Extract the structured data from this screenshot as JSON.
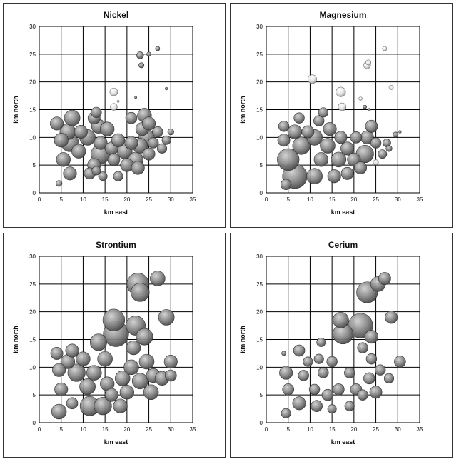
{
  "chart_data": [
    {
      "type": "scatter",
      "title": "Nickel",
      "xlabel": "km east",
      "ylabel": "km north",
      "xlim": [
        0,
        35
      ],
      "ylim": [
        0,
        30
      ],
      "xticks": [
        "0",
        "5",
        "10",
        "15",
        "20",
        "25",
        "30",
        "35"
      ],
      "yticks": [
        "0",
        "5",
        "10",
        "15",
        "20",
        "25",
        "30"
      ],
      "grid": true,
      "points": [
        {
          "x": 4,
          "y": 12.5,
          "r": 1.5
        },
        {
          "x": 5,
          "y": 9.5,
          "r": 1.6
        },
        {
          "x": 5.5,
          "y": 6,
          "r": 1.6
        },
        {
          "x": 6.5,
          "y": 11,
          "r": 1.8
        },
        {
          "x": 7.5,
          "y": 13.5,
          "r": 1.8
        },
        {
          "x": 7,
          "y": 9,
          "r": 2
        },
        {
          "x": 7,
          "y": 3.5,
          "r": 1.5
        },
        {
          "x": 4.5,
          "y": 1.7,
          "r": 0.7
        },
        {
          "x": 9.5,
          "y": 11,
          "r": 1.5
        },
        {
          "x": 9,
          "y": 7.5,
          "r": 1.6
        },
        {
          "x": 11,
          "y": 10,
          "r": 1.8
        },
        {
          "x": 11.5,
          "y": 3.5,
          "r": 1.3
        },
        {
          "x": 12.5,
          "y": 13.5,
          "r": 1.4
        },
        {
          "x": 13.5,
          "y": 12,
          "r": 1.6
        },
        {
          "x": 13,
          "y": 14.5,
          "r": 1.2
        },
        {
          "x": 14,
          "y": 9,
          "r": 1.5
        },
        {
          "x": 14,
          "y": 7,
          "r": 2.2
        },
        {
          "x": 12.5,
          "y": 5,
          "r": 1.5
        },
        {
          "x": 14.5,
          "y": 3,
          "r": 1
        },
        {
          "x": 13,
          "y": 4,
          "r": 1
        },
        {
          "x": 15.5,
          "y": 11.5,
          "r": 1.6
        },
        {
          "x": 16.5,
          "y": 8,
          "r": 1.5
        },
        {
          "x": 17,
          "y": 6,
          "r": 1.4
        },
        {
          "x": 18,
          "y": 9.5,
          "r": 1.5
        },
        {
          "x": 18,
          "y": 3,
          "r": 1.1
        },
        {
          "x": 19.5,
          "y": 7.5,
          "r": 1.7
        },
        {
          "x": 20,
          "y": 5,
          "r": 1.5
        },
        {
          "x": 21,
          "y": 9,
          "r": 1.5
        },
        {
          "x": 21,
          "y": 13.5,
          "r": 1.3
        },
        {
          "x": 22,
          "y": 6,
          "r": 1.7
        },
        {
          "x": 22.5,
          "y": 4.5,
          "r": 1.5
        },
        {
          "x": 23,
          "y": 8.5,
          "r": 1.7
        },
        {
          "x": 23.5,
          "y": 11.5,
          "r": 1.5
        },
        {
          "x": 24,
          "y": 14,
          "r": 1.6
        },
        {
          "x": 24.5,
          "y": 10,
          "r": 1.8
        },
        {
          "x": 25,
          "y": 12.5,
          "r": 1.5
        },
        {
          "x": 25,
          "y": 7,
          "r": 1.4
        },
        {
          "x": 26,
          "y": 9,
          "r": 1.2
        },
        {
          "x": 27,
          "y": 11,
          "r": 1.2
        },
        {
          "x": 28,
          "y": 8,
          "r": 1.1
        },
        {
          "x": 29,
          "y": 9.5,
          "r": 1
        },
        {
          "x": 30,
          "y": 11,
          "r": 0.7
        },
        {
          "x": 23,
          "y": 24.8,
          "r": 0.8
        },
        {
          "x": 23.3,
          "y": 23,
          "r": 0.6
        },
        {
          "x": 25,
          "y": 25,
          "r": 0.5
        },
        {
          "x": 27,
          "y": 26,
          "r": 0.5
        },
        {
          "x": 29,
          "y": 18.8,
          "r": 0.3
        },
        {
          "x": 22,
          "y": 17.2,
          "r": 0.15
        },
        {
          "x": 17,
          "y": 18.2,
          "r": 0.9,
          "light": true
        },
        {
          "x": 17,
          "y": 15.5,
          "r": 0.8,
          "light": true
        },
        {
          "x": 18,
          "y": 16.5,
          "r": 0.25,
          "light": true
        }
      ]
    },
    {
      "type": "scatter",
      "title": "Magnesium",
      "xlabel": "km east",
      "ylabel": "km north",
      "xlim": [
        0,
        35
      ],
      "ylim": [
        0,
        30
      ],
      "xticks": [
        "0",
        "5",
        "10",
        "15",
        "20",
        "25",
        "30",
        "35"
      ],
      "yticks": [
        "0",
        "5",
        "10",
        "15",
        "20",
        "25",
        "30"
      ],
      "grid": true,
      "points": [
        {
          "x": 4,
          "y": 12,
          "r": 1.2
        },
        {
          "x": 4,
          "y": 9.5,
          "r": 1.4
        },
        {
          "x": 5,
          "y": 6,
          "r": 2.5
        },
        {
          "x": 6.5,
          "y": 3,
          "r": 2.8
        },
        {
          "x": 4.5,
          "y": 1.5,
          "r": 1.2
        },
        {
          "x": 6.5,
          "y": 11,
          "r": 1.6
        },
        {
          "x": 7.5,
          "y": 13.5,
          "r": 1.2
        },
        {
          "x": 8,
          "y": 8.5,
          "r": 2
        },
        {
          "x": 9.5,
          "y": 11,
          "r": 1.4
        },
        {
          "x": 11,
          "y": 10,
          "r": 1.8
        },
        {
          "x": 12,
          "y": 13,
          "r": 1.2
        },
        {
          "x": 13,
          "y": 14.5,
          "r": 1.1
        },
        {
          "x": 11,
          "y": 3,
          "r": 1.8
        },
        {
          "x": 12.5,
          "y": 6,
          "r": 1.6
        },
        {
          "x": 14,
          "y": 8.5,
          "r": 1.7
        },
        {
          "x": 14.5,
          "y": 11.5,
          "r": 1.5
        },
        {
          "x": 15.5,
          "y": 3,
          "r": 1.5
        },
        {
          "x": 16.5,
          "y": 6,
          "r": 1.7
        },
        {
          "x": 17,
          "y": 10,
          "r": 1.4
        },
        {
          "x": 18.5,
          "y": 8,
          "r": 1.5
        },
        {
          "x": 18.5,
          "y": 3.5,
          "r": 1.4
        },
        {
          "x": 20,
          "y": 6,
          "r": 1.5
        },
        {
          "x": 20.5,
          "y": 10,
          "r": 1.3
        },
        {
          "x": 21.5,
          "y": 4.5,
          "r": 1.4
        },
        {
          "x": 22.5,
          "y": 7,
          "r": 2
        },
        {
          "x": 23,
          "y": 10,
          "r": 1.5
        },
        {
          "x": 24,
          "y": 12,
          "r": 1.4
        },
        {
          "x": 25,
          "y": 9,
          "r": 1.2
        },
        {
          "x": 26.5,
          "y": 7,
          "r": 1
        },
        {
          "x": 27.5,
          "y": 9,
          "r": 0.9
        },
        {
          "x": 28,
          "y": 8,
          "r": 0.7
        },
        {
          "x": 29.5,
          "y": 10.5,
          "r": 0.6
        },
        {
          "x": 30.5,
          "y": 11,
          "r": 0.3
        },
        {
          "x": 22.5,
          "y": 15.5,
          "r": 0.4
        },
        {
          "x": 23.5,
          "y": 15,
          "r": 0.3
        },
        {
          "x": 21.5,
          "y": 17,
          "r": 0.4,
          "light": true
        },
        {
          "x": 10.5,
          "y": 20.5,
          "r": 1,
          "light": true
        },
        {
          "x": 17,
          "y": 18.2,
          "r": 1.1,
          "light": true
        },
        {
          "x": 17.3,
          "y": 15.5,
          "r": 0.9,
          "light": true
        },
        {
          "x": 23,
          "y": 23,
          "r": 0.8,
          "light": true
        },
        {
          "x": 23.3,
          "y": 23.5,
          "r": 0.6,
          "light": true
        },
        {
          "x": 27,
          "y": 26,
          "r": 0.5,
          "light": true
        },
        {
          "x": 28.5,
          "y": 19,
          "r": 0.5,
          "light": true
        },
        {
          "x": 25,
          "y": 5.5,
          "r": 0.6,
          "light": true
        }
      ]
    },
    {
      "type": "scatter",
      "title": "Strontium",
      "xlabel": "km east",
      "ylabel": "km north",
      "xlim": [
        0,
        35
      ],
      "ylim": [
        0,
        30
      ],
      "xticks": [
        "0",
        "5",
        "10",
        "15",
        "20",
        "25",
        "30",
        "35"
      ],
      "yticks": [
        "0",
        "5",
        "10",
        "15",
        "20",
        "25",
        "30"
      ],
      "grid": true,
      "points": [
        {
          "x": 4,
          "y": 12.5,
          "r": 1.4
        },
        {
          "x": 4.5,
          "y": 9.5,
          "r": 1.5
        },
        {
          "x": 5,
          "y": 6,
          "r": 1.5
        },
        {
          "x": 4.5,
          "y": 2,
          "r": 1.7
        },
        {
          "x": 6.5,
          "y": 11,
          "r": 1.6
        },
        {
          "x": 7.5,
          "y": 13,
          "r": 1.5
        },
        {
          "x": 7.5,
          "y": 3.5,
          "r": 1.3
        },
        {
          "x": 8.5,
          "y": 9,
          "r": 2
        },
        {
          "x": 10,
          "y": 11.5,
          "r": 1.6
        },
        {
          "x": 11,
          "y": 6.5,
          "r": 1.8
        },
        {
          "x": 11.5,
          "y": 3,
          "r": 2.2
        },
        {
          "x": 12.5,
          "y": 9,
          "r": 1.7
        },
        {
          "x": 13.5,
          "y": 14.5,
          "r": 1.9
        },
        {
          "x": 14.5,
          "y": 3,
          "r": 2
        },
        {
          "x": 15,
          "y": 11.5,
          "r": 1.7
        },
        {
          "x": 15.5,
          "y": 7,
          "r": 1.6
        },
        {
          "x": 16.5,
          "y": 5,
          "r": 1.5
        },
        {
          "x": 17,
          "y": 18.5,
          "r": 2.5
        },
        {
          "x": 17.5,
          "y": 16,
          "r": 2.9
        },
        {
          "x": 18.5,
          "y": 3,
          "r": 1.6
        },
        {
          "x": 19,
          "y": 8,
          "r": 1.7
        },
        {
          "x": 20,
          "y": 5.5,
          "r": 1.6
        },
        {
          "x": 21,
          "y": 10,
          "r": 1.7
        },
        {
          "x": 21.5,
          "y": 13.5,
          "r": 1.6
        },
        {
          "x": 22,
          "y": 17.5,
          "r": 2.2
        },
        {
          "x": 22.5,
          "y": 25,
          "r": 2.5
        },
        {
          "x": 23,
          "y": 23.5,
          "r": 2.1
        },
        {
          "x": 23,
          "y": 7.5,
          "r": 1.8
        },
        {
          "x": 24,
          "y": 15.5,
          "r": 1.9
        },
        {
          "x": 24.5,
          "y": 11,
          "r": 1.7
        },
        {
          "x": 25.5,
          "y": 5.5,
          "r": 1.7
        },
        {
          "x": 26,
          "y": 8.5,
          "r": 1.6
        },
        {
          "x": 27,
          "y": 26,
          "r": 1.7
        },
        {
          "x": 28,
          "y": 8,
          "r": 1.6
        },
        {
          "x": 29,
          "y": 19,
          "r": 1.8
        },
        {
          "x": 30,
          "y": 11,
          "r": 1.5
        },
        {
          "x": 30,
          "y": 8.5,
          "r": 1.3
        }
      ]
    },
    {
      "type": "scatter",
      "title": "Cerium",
      "xlabel": "km east",
      "ylabel": "km north",
      "xlim": [
        0,
        35
      ],
      "ylim": [
        0,
        30
      ],
      "xticks": [
        "0",
        "5",
        "10",
        "15",
        "20",
        "25",
        "30",
        "35"
      ],
      "yticks": [
        "0",
        "5",
        "10",
        "15",
        "20",
        "25",
        "30"
      ],
      "grid": true,
      "points": [
        {
          "x": 4,
          "y": 12.5,
          "r": 0.5
        },
        {
          "x": 4.5,
          "y": 9,
          "r": 1.5
        },
        {
          "x": 5,
          "y": 6,
          "r": 1.3
        },
        {
          "x": 4.5,
          "y": 1.7,
          "r": 1.1
        },
        {
          "x": 7.5,
          "y": 13,
          "r": 1.3
        },
        {
          "x": 8.5,
          "y": 8.5,
          "r": 1.2
        },
        {
          "x": 7.5,
          "y": 3.5,
          "r": 1.5
        },
        {
          "x": 9.5,
          "y": 11,
          "r": 1.1
        },
        {
          "x": 11,
          "y": 6,
          "r": 1.2
        },
        {
          "x": 11.5,
          "y": 3,
          "r": 1.3
        },
        {
          "x": 12,
          "y": 11.5,
          "r": 1.1
        },
        {
          "x": 12.5,
          "y": 14.5,
          "r": 1
        },
        {
          "x": 13,
          "y": 9,
          "r": 1.2
        },
        {
          "x": 14,
          "y": 5,
          "r": 1.3
        },
        {
          "x": 15,
          "y": 11,
          "r": 1.2
        },
        {
          "x": 15,
          "y": 2.5,
          "r": 1
        },
        {
          "x": 16.5,
          "y": 6,
          "r": 1.3
        },
        {
          "x": 17,
          "y": 18.5,
          "r": 1.8
        },
        {
          "x": 17.5,
          "y": 16,
          "r": 2.3
        },
        {
          "x": 19,
          "y": 9,
          "r": 1.2
        },
        {
          "x": 19,
          "y": 3,
          "r": 1.1
        },
        {
          "x": 20.5,
          "y": 6,
          "r": 1.3
        },
        {
          "x": 21.5,
          "y": 17.5,
          "r": 2.8
        },
        {
          "x": 22,
          "y": 13.5,
          "r": 1.2
        },
        {
          "x": 22,
          "y": 5,
          "r": 1.2
        },
        {
          "x": 23,
          "y": 23.5,
          "r": 2.4
        },
        {
          "x": 23.5,
          "y": 8,
          "r": 1.3
        },
        {
          "x": 24,
          "y": 11.5,
          "r": 1.2
        },
        {
          "x": 24,
          "y": 15.5,
          "r": 1.5
        },
        {
          "x": 25,
          "y": 5.5,
          "r": 1.4
        },
        {
          "x": 25.5,
          "y": 25,
          "r": 1.7
        },
        {
          "x": 27,
          "y": 26,
          "r": 1.4
        },
        {
          "x": 28,
          "y": 8,
          "r": 1.1
        },
        {
          "x": 28.5,
          "y": 19,
          "r": 1.4
        },
        {
          "x": 30.5,
          "y": 11,
          "r": 1.3
        },
        {
          "x": 26,
          "y": 9.5,
          "r": 1.2
        }
      ]
    }
  ]
}
